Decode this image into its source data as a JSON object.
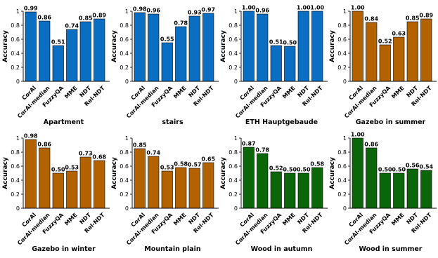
{
  "chart_data": [
    {
      "type": "bar",
      "title": "Apartment",
      "ylabel": "Accuracy",
      "ylim": [
        0,
        1
      ],
      "yticks": [
        "0",
        "0.2",
        "0.4",
        "0.6",
        "0.8",
        "1"
      ],
      "categories": [
        "CorAl",
        "CorAl-median",
        "FuzzyQA",
        "MME",
        "NDT",
        "Rel-NDT"
      ],
      "values": [
        0.99,
        0.86,
        0.51,
        0.74,
        0.85,
        0.89
      ],
      "value_labels": [
        "0.99",
        "0.86",
        "0.51",
        "0.74",
        "0.85",
        "0.89"
      ],
      "color": "#0a6fc2"
    },
    {
      "type": "bar",
      "title": "stairs",
      "ylabel": "Accuracy",
      "ylim": [
        0,
        1
      ],
      "yticks": [
        "0",
        "0.2",
        "0.4",
        "0.6",
        "0.8",
        "1"
      ],
      "categories": [
        "CorAl",
        "CorAl-median",
        "FuzzyQA",
        "MME",
        "NDT",
        "Rel-NDT"
      ],
      "values": [
        0.98,
        0.96,
        0.55,
        0.78,
        0.93,
        0.97
      ],
      "value_labels": [
        "0.98",
        "0.96",
        "0.55",
        "0.78",
        "0.93",
        "0.97"
      ],
      "color": "#0a6fc2"
    },
    {
      "type": "bar",
      "title": "ETH Hauptgebaude",
      "ylabel": "Accuracy",
      "ylim": [
        0,
        1
      ],
      "yticks": [
        "0",
        "0.2",
        "0.4",
        "0.6",
        "0.8",
        "1"
      ],
      "categories": [
        "CorAl",
        "CorAl-median",
        "FuzzyQA",
        "MME",
        "NDT",
        "Rel-NDT"
      ],
      "values": [
        1.0,
        0.96,
        0.51,
        0.5,
        1.0,
        1.0
      ],
      "value_labels": [
        "1.00",
        "0.96",
        "0.51",
        "0.50",
        "1.00",
        "1.00"
      ],
      "color": "#0a6fc2"
    },
    {
      "type": "bar",
      "title": "Gazebo in summer",
      "ylabel": "Accuracy",
      "ylim": [
        0,
        1
      ],
      "yticks": [
        "0",
        "0.2",
        "0.4",
        "0.6",
        "0.8",
        "1"
      ],
      "categories": [
        "CorAl",
        "CorAl-median",
        "FuzzyQA",
        "MME",
        "NDT",
        "Rel-NDT"
      ],
      "values": [
        1.0,
        0.84,
        0.52,
        0.63,
        0.85,
        0.89
      ],
      "value_labels": [
        "1.00",
        "0.84",
        "0.52",
        "0.63",
        "0.85",
        "0.89"
      ],
      "color": "#b36200"
    },
    {
      "type": "bar",
      "title": "Gazebo in winter",
      "ylabel": "Accuracy",
      "ylim": [
        0,
        1
      ],
      "yticks": [
        "0",
        "0.2",
        "0.4",
        "0.6",
        "0.8",
        "1"
      ],
      "categories": [
        "CorAl",
        "CorAl-median",
        "FuzzyQA",
        "MME",
        "NDT",
        "Rel-NDT"
      ],
      "values": [
        0.98,
        0.86,
        0.5,
        0.53,
        0.73,
        0.68
      ],
      "value_labels": [
        "0.98",
        "0.86",
        "0.50",
        "0.53",
        "0.73",
        "0.68"
      ],
      "color": "#b36200"
    },
    {
      "type": "bar",
      "title": "Mountain plain",
      "ylabel": "Accuracy",
      "ylim": [
        0,
        1
      ],
      "yticks": [
        "0",
        "0.2",
        "0.4",
        "0.6",
        "0.8",
        "1"
      ],
      "categories": [
        "CorAl",
        "CorAl-median",
        "FuzzyQA",
        "MME",
        "NDT",
        "Rel-NDT"
      ],
      "values": [
        0.85,
        0.74,
        0.53,
        0.58,
        0.57,
        0.65
      ],
      "value_labels": [
        "0.85",
        "0.74",
        "0.53",
        "0.58",
        "0.57",
        "0.65"
      ],
      "color": "#b36200"
    },
    {
      "type": "bar",
      "title": "Wood in autumn",
      "ylabel": "Accuracy",
      "ylim": [
        0,
        1
      ],
      "yticks": [
        "0",
        "0.2",
        "0.4",
        "0.6",
        "0.8",
        "1"
      ],
      "categories": [
        "CorAl",
        "CorAl-median",
        "FuzzyQA",
        "MME",
        "NDT",
        "Rel-NDT"
      ],
      "values": [
        0.87,
        0.78,
        0.52,
        0.5,
        0.5,
        0.58
      ],
      "value_labels": [
        "0.87",
        "0.78",
        "0.52",
        "0.50",
        "0.50",
        "0.58"
      ],
      "color": "#0a6608"
    },
    {
      "type": "bar",
      "title": "Wood in summer",
      "ylabel": "Accuracy",
      "ylim": [
        0,
        1
      ],
      "yticks": [
        "0",
        "0.2",
        "0.4",
        "0.6",
        "0.8",
        "1"
      ],
      "categories": [
        "CorAl",
        "CorAl-median",
        "FuzzyQA",
        "MME",
        "NDT",
        "Rel-NDT"
      ],
      "values": [
        1.0,
        0.86,
        0.5,
        0.5,
        0.56,
        0.54
      ],
      "value_labels": [
        "1.00",
        "0.86",
        "0.50",
        "0.50",
        "0.56",
        "0.54"
      ],
      "color": "#0a6608"
    }
  ]
}
